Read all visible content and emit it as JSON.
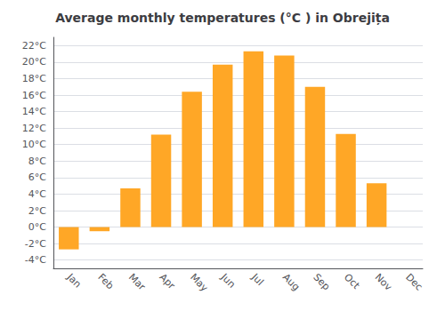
{
  "chart_data": {
    "type": "bar",
    "title": "Average monthly temperatures (°C ) in Obrejița",
    "categories": [
      "Jan",
      "Feb",
      "Mar",
      "Apr",
      "May",
      "Jun",
      "Jul",
      "Aug",
      "Sep",
      "Oct",
      "Nov",
      "Dec"
    ],
    "values": [
      -2.7,
      -0.5,
      4.7,
      11.2,
      16.4,
      19.7,
      21.3,
      20.8,
      17.0,
      11.3,
      5.3,
      0.0
    ],
    "color": "#FFA726",
    "ylim": [
      -5,
      23
    ],
    "yticks": [
      {
        "value": -4,
        "label": "-4°C"
      },
      {
        "value": -2,
        "label": "-2°C"
      },
      {
        "value": 0,
        "label": "0°C"
      },
      {
        "value": 2,
        "label": "2°C"
      },
      {
        "value": 4,
        "label": "4°C"
      },
      {
        "value": 6,
        "label": "6°C"
      },
      {
        "value": 8,
        "label": "8°C"
      },
      {
        "value": 10,
        "label": "10°C"
      },
      {
        "value": 12,
        "label": "12°C"
      },
      {
        "value": 14,
        "label": "14°C"
      },
      {
        "value": 16,
        "label": "16°C"
      },
      {
        "value": 18,
        "label": "18°C"
      },
      {
        "value": 20,
        "label": "20°C"
      },
      {
        "value": 22,
        "label": "22°C"
      }
    ],
    "grid": true
  }
}
